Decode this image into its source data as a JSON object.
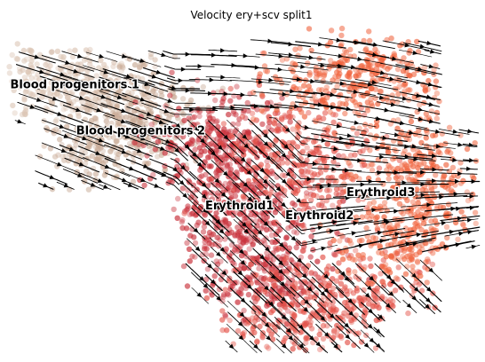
{
  "chart_data": {
    "type": "scatter",
    "title": "Velocity ery+scv split1",
    "xlabel": "",
    "ylabel": "",
    "axes": "off",
    "grid": false,
    "overlay": "velocity streamlines with arrowheads",
    "colors": {
      "Blood progenitors 1": "#dcc6b6",
      "Blood progenitors 2": "#c9ab97",
      "Erythroid1": "#c9323c",
      "Erythroid2": "#e4544a",
      "Erythroid3": "#f0643e"
    },
    "clusters": [
      {
        "name": "Blood progenitors 1",
        "x": 0.14,
        "y": 0.82
      },
      {
        "name": "Blood progenitors 2",
        "x": 0.28,
        "y": 0.68
      },
      {
        "name": "Erythroid1",
        "x": 0.49,
        "y": 0.45
      },
      {
        "name": "Erythroid2",
        "x": 0.66,
        "y": 0.42
      },
      {
        "name": "Erythroid3",
        "x": 0.79,
        "y": 0.49
      }
    ]
  }
}
